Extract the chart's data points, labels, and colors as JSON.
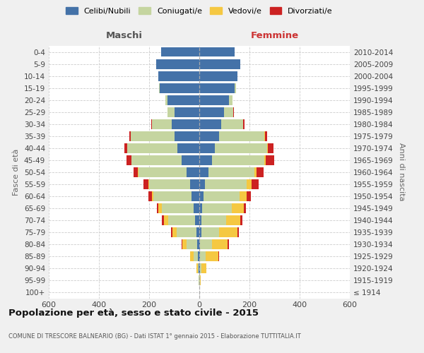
{
  "age_groups": [
    "100+",
    "95-99",
    "90-94",
    "85-89",
    "80-84",
    "75-79",
    "70-74",
    "65-69",
    "60-64",
    "55-59",
    "50-54",
    "45-49",
    "40-44",
    "35-39",
    "30-34",
    "25-29",
    "20-24",
    "15-19",
    "10-14",
    "5-9",
    "0-4"
  ],
  "birth_years": [
    "≤ 1914",
    "1915-1919",
    "1920-1924",
    "1925-1929",
    "1930-1934",
    "1935-1939",
    "1940-1944",
    "1945-1949",
    "1950-1954",
    "1955-1959",
    "1960-1964",
    "1965-1969",
    "1970-1974",
    "1975-1979",
    "1980-1984",
    "1985-1989",
    "1990-1994",
    "1995-1999",
    "2000-2004",
    "2005-2009",
    "2010-2014"
  ],
  "colors": {
    "celibi": "#4472a8",
    "coniugati": "#c5d5a0",
    "vedovi": "#f5c842",
    "divorziati": "#cc2222"
  },
  "legend_labels": [
    "Celibi/Nubili",
    "Coniugati/e",
    "Vedovi/e",
    "Divorziati/e"
  ],
  "maschi_celibi": [
    0,
    1,
    2,
    5,
    8,
    12,
    18,
    22,
    32,
    38,
    52,
    70,
    88,
    100,
    110,
    98,
    128,
    158,
    162,
    172,
    152
  ],
  "maschi_coniugati": [
    0,
    1,
    4,
    18,
    42,
    78,
    105,
    128,
    150,
    162,
    190,
    200,
    198,
    172,
    78,
    28,
    8,
    2,
    0,
    0,
    0
  ],
  "maschi_vedovi": [
    0,
    1,
    5,
    14,
    18,
    18,
    18,
    12,
    8,
    4,
    2,
    1,
    1,
    0,
    0,
    0,
    0,
    0,
    0,
    0,
    0
  ],
  "maschi_divorziati": [
    0,
    0,
    0,
    1,
    2,
    5,
    8,
    8,
    12,
    18,
    18,
    18,
    13,
    7,
    4,
    2,
    0,
    0,
    0,
    0,
    0
  ],
  "femmine_nubili": [
    0,
    1,
    2,
    3,
    4,
    8,
    8,
    12,
    18,
    22,
    38,
    52,
    62,
    78,
    88,
    98,
    118,
    142,
    152,
    162,
    142
  ],
  "femmine_coniugate": [
    0,
    2,
    7,
    22,
    48,
    72,
    98,
    118,
    142,
    168,
    182,
    208,
    208,
    182,
    88,
    38,
    13,
    4,
    0,
    0,
    0
  ],
  "femmine_vedove": [
    1,
    4,
    18,
    52,
    62,
    72,
    58,
    48,
    28,
    18,
    8,
    6,
    4,
    2,
    0,
    0,
    0,
    0,
    0,
    0,
    0
  ],
  "femmine_divorziate": [
    0,
    0,
    0,
    2,
    4,
    7,
    8,
    8,
    18,
    28,
    28,
    33,
    23,
    8,
    4,
    2,
    0,
    0,
    0,
    0,
    0
  ],
  "title": "Popolazione per età, sesso e stato civile - 2015",
  "subtitle": "COMUNE DI TRESCORE BALNEARIO (BG) - Dati ISTAT 1° gennaio 2015 - Elaborazione TUTTITALIA.IT",
  "label_maschi": "Maschi",
  "label_femmine": "Femmine",
  "ylabel_left": "Fasce di età",
  "ylabel_right": "Anni di nascita",
  "xlim": 600,
  "bg_color": "#f0f0f0",
  "plot_bg": "#ffffff"
}
